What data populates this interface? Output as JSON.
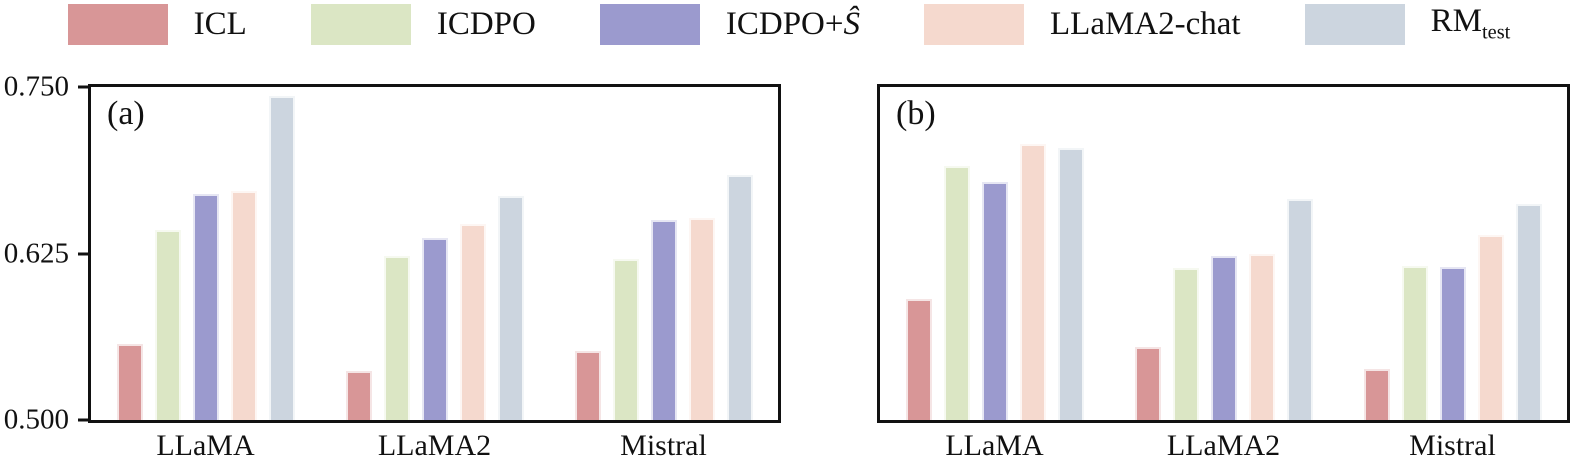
{
  "figure": {
    "background": "#ffffff",
    "axis_color": "#111111"
  },
  "legend": {
    "items": [
      {
        "label": "ICL",
        "color": "#d89697"
      },
      {
        "label": "ICDPO",
        "color": "#dbe6c4"
      },
      {
        "label": "ICDPO+",
        "math": "Ŝ",
        "color": "#9b9ace"
      },
      {
        "label": "LLaMA2-chat",
        "color": "#f5d9ce"
      },
      {
        "label": "RM",
        "subscript": "test",
        "color": "#ccd5df"
      }
    ]
  },
  "chart_data": [
    {
      "type": "bar",
      "panel_label": "(a)",
      "categories": [
        "LLaMA",
        "LLaMA2",
        "Mistral"
      ],
      "series": [
        {
          "name": "ICL",
          "color": "#d89697",
          "values": [
            0.557,
            0.537,
            0.552
          ]
        },
        {
          "name": "ICDPO",
          "color": "#dbe6c4",
          "values": [
            0.643,
            0.623,
            0.621
          ]
        },
        {
          "name": "ICDPO+Ŝ",
          "color": "#9b9ace",
          "values": [
            0.67,
            0.637,
            0.65
          ]
        },
        {
          "name": "LLaMA2-chat",
          "color": "#f5d9ce",
          "values": [
            0.672,
            0.647,
            0.652
          ]
        },
        {
          "name": "RM_test",
          "color": "#ccd5df",
          "values": [
            0.743,
            0.668,
            0.684
          ]
        }
      ],
      "ylim": [
        0.5,
        0.75
      ],
      "yticks": [
        "0.750",
        "0.625",
        "0.500"
      ],
      "show_ytick_labels": true,
      "grid": false,
      "legend_position": "top-center"
    },
    {
      "type": "bar",
      "panel_label": "(b)",
      "categories": [
        "LLaMA",
        "LLaMA2",
        "Mistral"
      ],
      "series": [
        {
          "name": "ICL",
          "color": "#d89697",
          "values": [
            0.591,
            0.555,
            0.538
          ]
        },
        {
          "name": "ICDPO",
          "color": "#dbe6c4",
          "values": [
            0.691,
            0.614,
            0.616
          ]
        },
        {
          "name": "ICDPO+Ŝ",
          "color": "#9b9ace",
          "values": [
            0.679,
            0.623,
            0.615
          ]
        },
        {
          "name": "LLaMA2-chat",
          "color": "#f5d9ce",
          "values": [
            0.707,
            0.625,
            0.639
          ]
        },
        {
          "name": "RM_test",
          "color": "#ccd5df",
          "values": [
            0.704,
            0.666,
            0.662
          ]
        }
      ],
      "ylim": [
        0.5,
        0.75
      ],
      "yticks": [
        "0.750",
        "0.625",
        "0.500"
      ],
      "show_ytick_labels": false,
      "grid": false,
      "legend_position": "top-center"
    }
  ]
}
